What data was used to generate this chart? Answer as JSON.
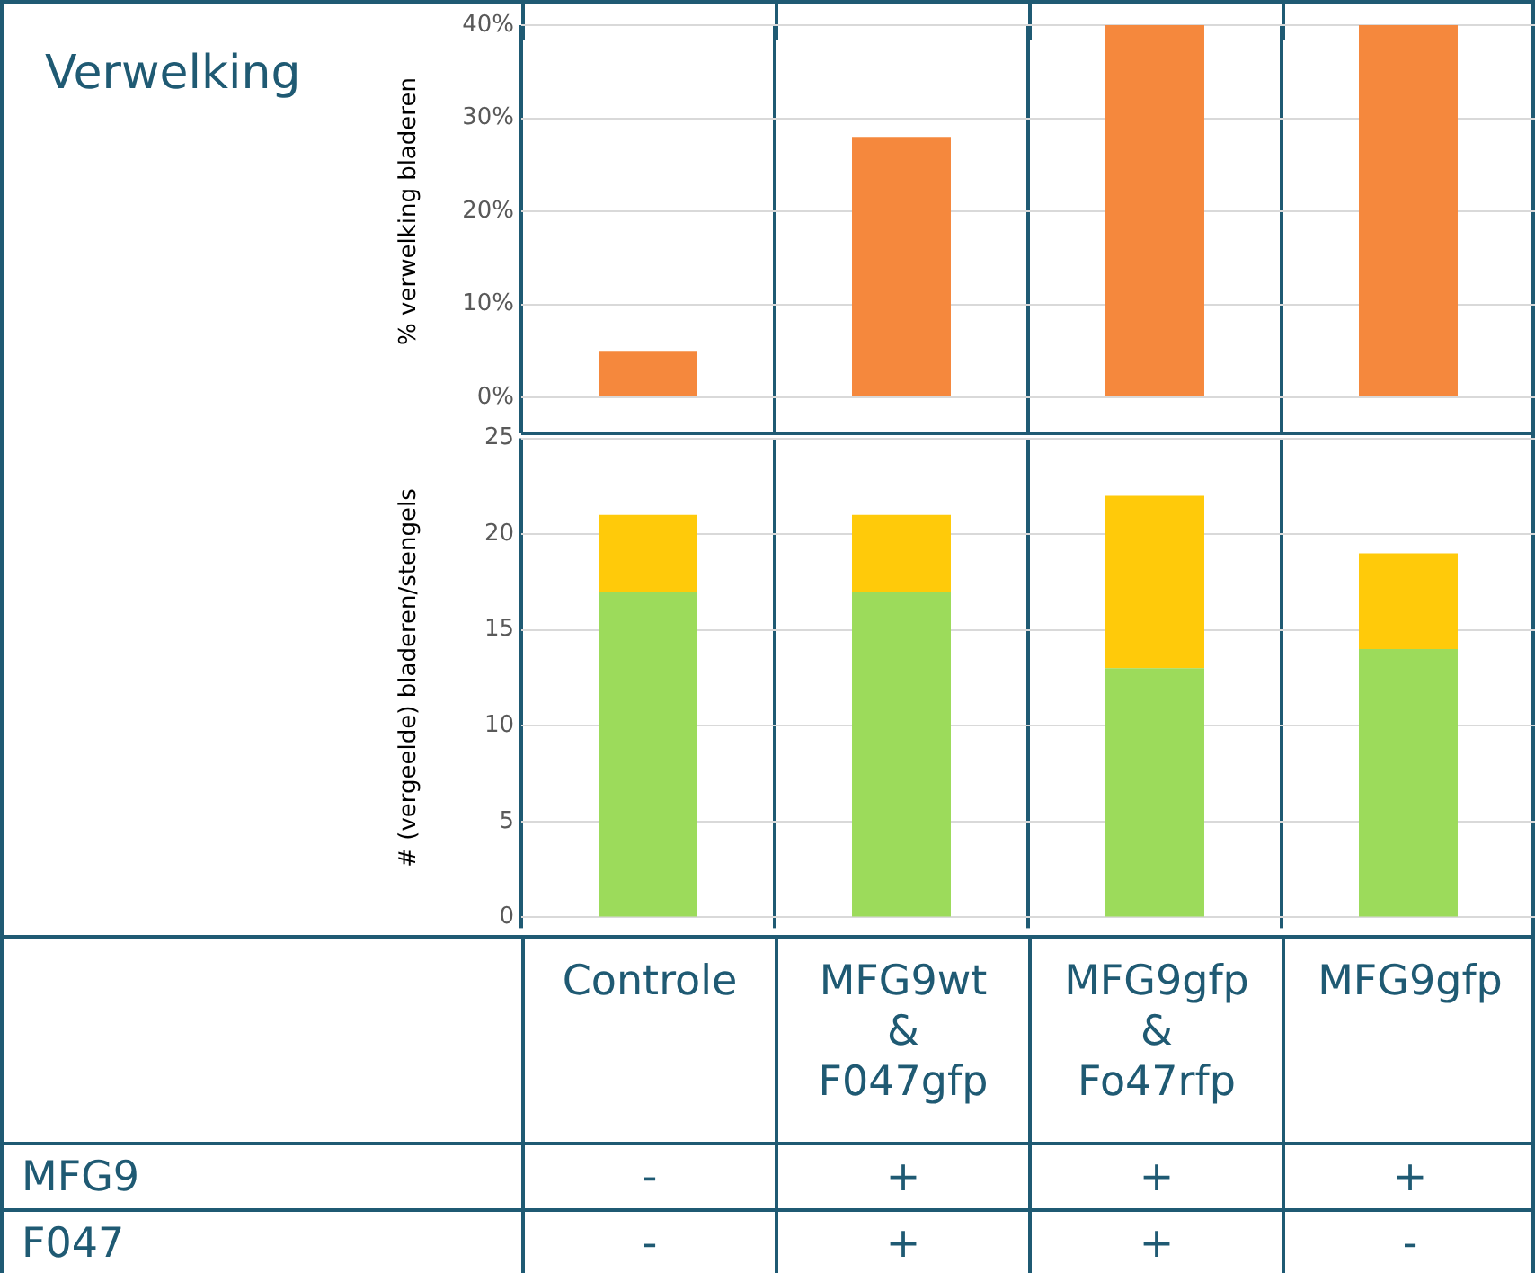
{
  "chart_data": [
    {
      "type": "bar",
      "title": "Verwelking",
      "ylabel": "% verwelking bladeren",
      "categories": [
        null,
        null,
        null,
        null
      ],
      "values": [
        5,
        28,
        40,
        40
      ],
      "color": "#f5883d",
      "ylim": [
        0,
        40
      ],
      "yticks": [
        {
          "value": 0,
          "label": "0%"
        },
        {
          "value": 10,
          "label": "10%"
        },
        {
          "value": 20,
          "label": "20%"
        },
        {
          "value": 30,
          "label": "30%"
        },
        {
          "value": 40,
          "label": "40%"
        }
      ],
      "grid": true,
      "legend": false,
      "tick_labels": "y"
    },
    {
      "type": "bar",
      "ylabel": "# (vergeelde) bladeren/stengels",
      "stacked": true,
      "categories": [
        "Controle",
        "MFG9wt & F047gfp",
        "MFG9gfp & Fo47rfp",
        "MFG9gfp"
      ],
      "series": [
        {
          "color": "#9cdb5b",
          "values": [
            17,
            17,
            13,
            14
          ]
        },
        {
          "color": "#ffca0a",
          "values": [
            4,
            4,
            9,
            5
          ]
        }
      ],
      "ylim": [
        0,
        25
      ],
      "yticks": [
        0,
        5,
        10,
        15,
        20,
        25
      ],
      "grid": true,
      "legend": false
    },
    {
      "type": "other",
      "annotations": [
        "MFG9",
        "-",
        "+",
        "+",
        "+",
        "F047",
        "-",
        "+",
        "+",
        "-"
      ]
    }
  ]
}
